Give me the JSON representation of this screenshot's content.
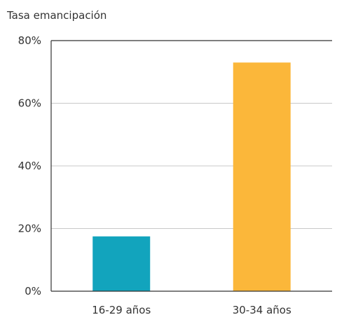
{
  "chart_data": {
    "type": "bar",
    "title": "",
    "ylabel": "Tasa emancipación",
    "xlabel": "",
    "categories": [
      "16-29 años",
      "30-34 años"
    ],
    "values": [
      17.5,
      73
    ],
    "ylim": [
      0,
      80
    ],
    "yticks": [
      0,
      20,
      40,
      60,
      80
    ],
    "ytick_labels": [
      "0%",
      "20%",
      "40%",
      "60%",
      "80%"
    ],
    "grid": true,
    "legend": "none",
    "bar_colors": [
      "#12a4bd",
      "#fbb73a"
    ],
    "axis_color": "#333333",
    "grid_color": "#c8c8c8"
  }
}
